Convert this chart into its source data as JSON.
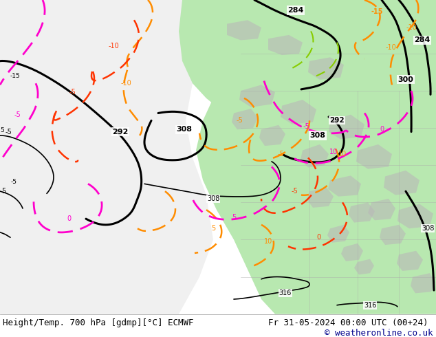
{
  "title_left": "Height/Temp. 700 hPa [gdmp][°C] ECMWF",
  "title_right": "Fr 31-05-2024 00:00 UTC (00+24)",
  "copyright": "© weatheronline.co.uk",
  "fig_width": 6.34,
  "fig_height": 4.9,
  "dpi": 100,
  "bg_color": "#ffffff",
  "ocean_color": "#e8e8f0",
  "land_color": "#d0d0d0",
  "green_color": "#b8e8b0",
  "contour_black": "#000000",
  "contour_orange": "#FF8C00",
  "contour_red": "#FF3300",
  "contour_pink": "#FF00CC",
  "contour_green": "#88CC00",
  "caption_fontsize": 9.0,
  "caption_color": "#000000",
  "copyright_color": "#00008B"
}
